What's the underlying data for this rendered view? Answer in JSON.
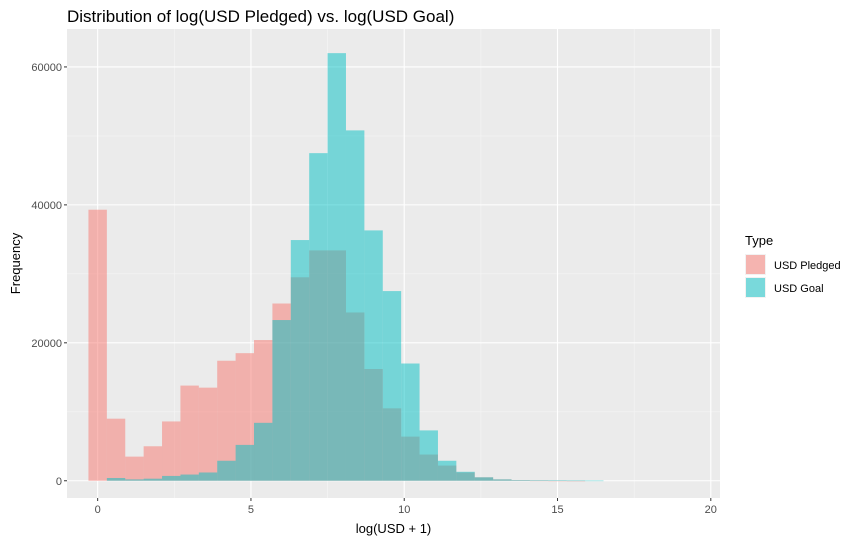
{
  "chart_data": {
    "type": "bar",
    "title": "Distribution of log(USD Pledged) vs. log(USD Goal)",
    "xlabel": "log(USD + 1)",
    "ylabel": "Frequency",
    "xlim": [
      -1,
      20.3
    ],
    "ylim": [
      -2500,
      65500
    ],
    "xticks": [
      0,
      5,
      10,
      15,
      20
    ],
    "xtick_labels": [
      "0",
      "5",
      "10",
      "15",
      "20"
    ],
    "yticks": [
      0,
      20000,
      40000,
      60000
    ],
    "ytick_labels": [
      "0",
      "20000",
      "40000",
      "60000"
    ],
    "grid": true,
    "legend": {
      "title": "Type",
      "position": "right"
    },
    "bin_width": 0.6,
    "bin_starts": [
      -0.3,
      0.3,
      0.9,
      1.5,
      2.1,
      2.7,
      3.3,
      3.9,
      4.5,
      5.1,
      5.7,
      6.3,
      6.9,
      7.5,
      8.1,
      8.7,
      9.3,
      9.9,
      10.5,
      11.1,
      11.7,
      12.3,
      12.9,
      13.5,
      14.1,
      14.7,
      15.3,
      15.9,
      16.5,
      17.1,
      17.7,
      18.3,
      18.9
    ],
    "series": [
      {
        "name": "USD Pledged",
        "color": "#F8766D",
        "values": [
          39300,
          9000,
          3500,
          5000,
          8600,
          13800,
          13500,
          17400,
          18500,
          20400,
          25700,
          29500,
          33400,
          33400,
          24400,
          16200,
          10500,
          6400,
          3800,
          2200,
          1200,
          500,
          200,
          100,
          30,
          10,
          5,
          0,
          0,
          0,
          0,
          0,
          0
        ]
      },
      {
        "name": "USD Goal",
        "color": "#00BFC4",
        "values": [
          0,
          400,
          200,
          300,
          700,
          900,
          1200,
          2900,
          5200,
          8400,
          23300,
          34900,
          47500,
          62000,
          50800,
          36300,
          27500,
          17000,
          7300,
          2900,
          1300,
          500,
          200,
          100,
          80,
          60,
          40,
          30,
          0,
          0,
          0,
          0,
          0
        ]
      }
    ]
  }
}
